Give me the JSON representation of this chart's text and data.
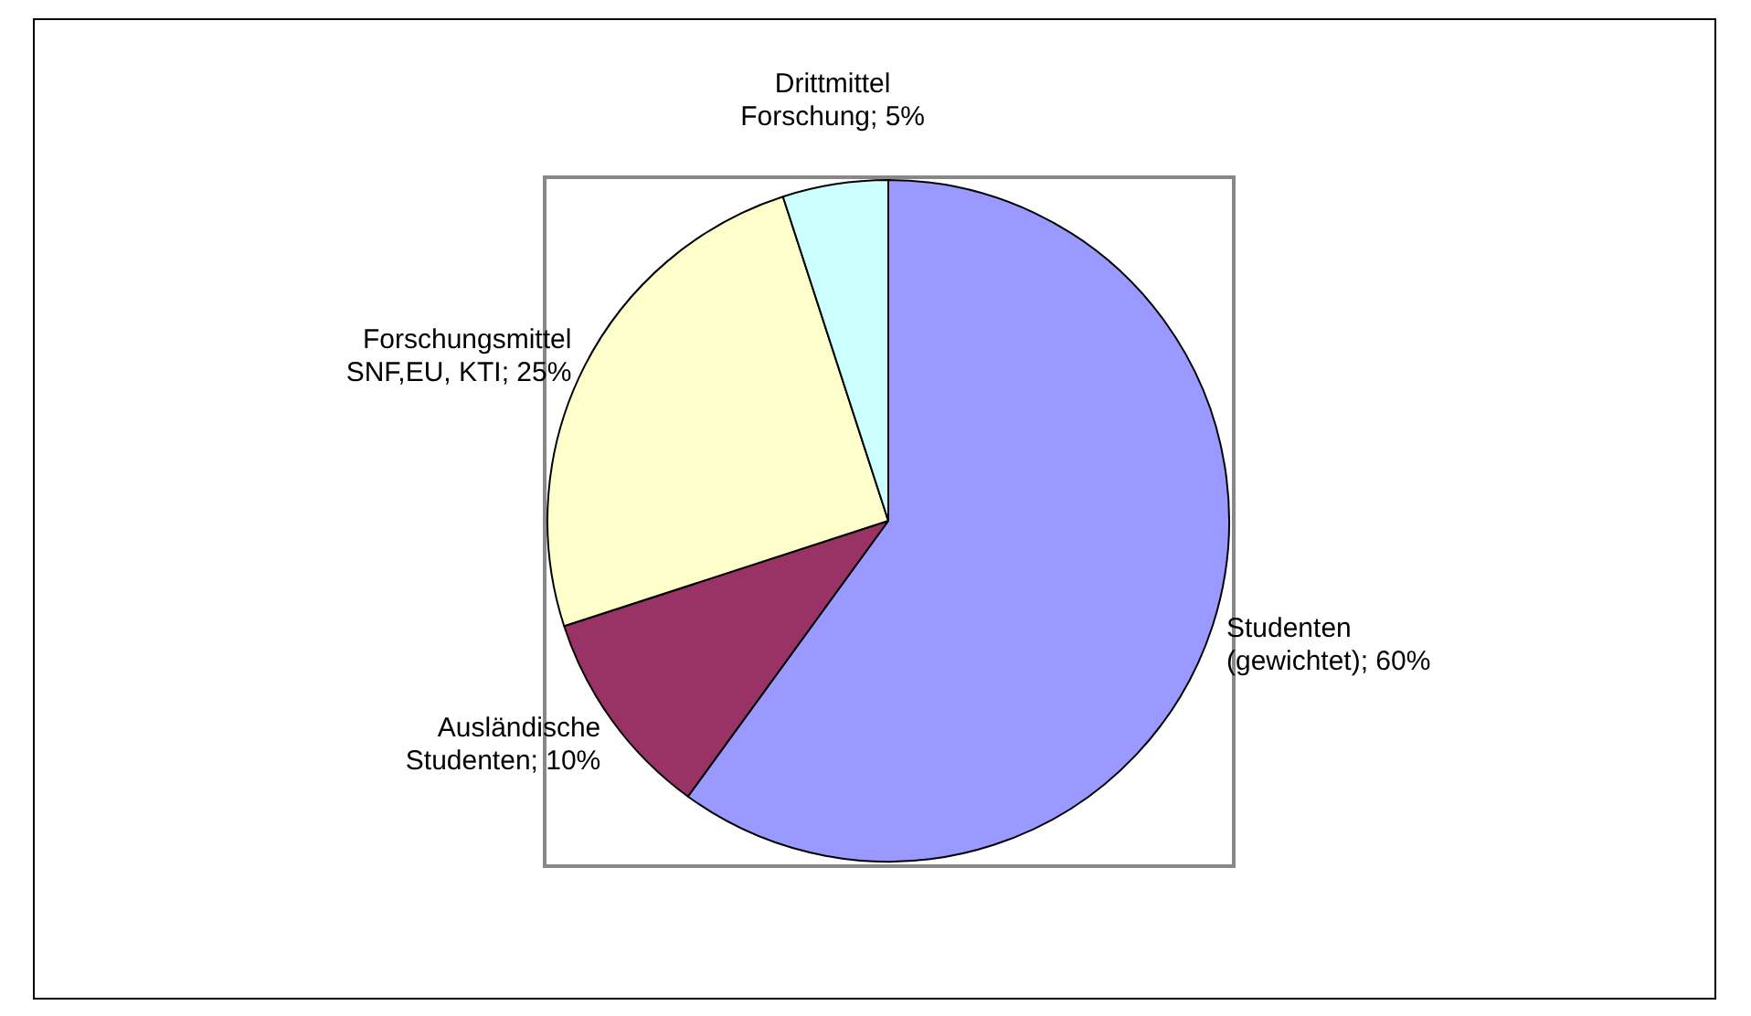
{
  "chart_data": {
    "type": "pie",
    "categories": [
      "Studenten (gewichtet)",
      "Ausländische Studenten",
      "Forschungsmittel SNF,EU, KTI",
      "Drittmittel Forschung"
    ],
    "values": [
      60,
      10,
      25,
      5
    ],
    "colors": [
      "#9999ff",
      "#993366",
      "#ffffcc",
      "#ccffff"
    ],
    "value_labels": [
      "; 60%",
      "; 10%",
      "; 25%",
      "; 5%"
    ],
    "legend": false
  }
}
